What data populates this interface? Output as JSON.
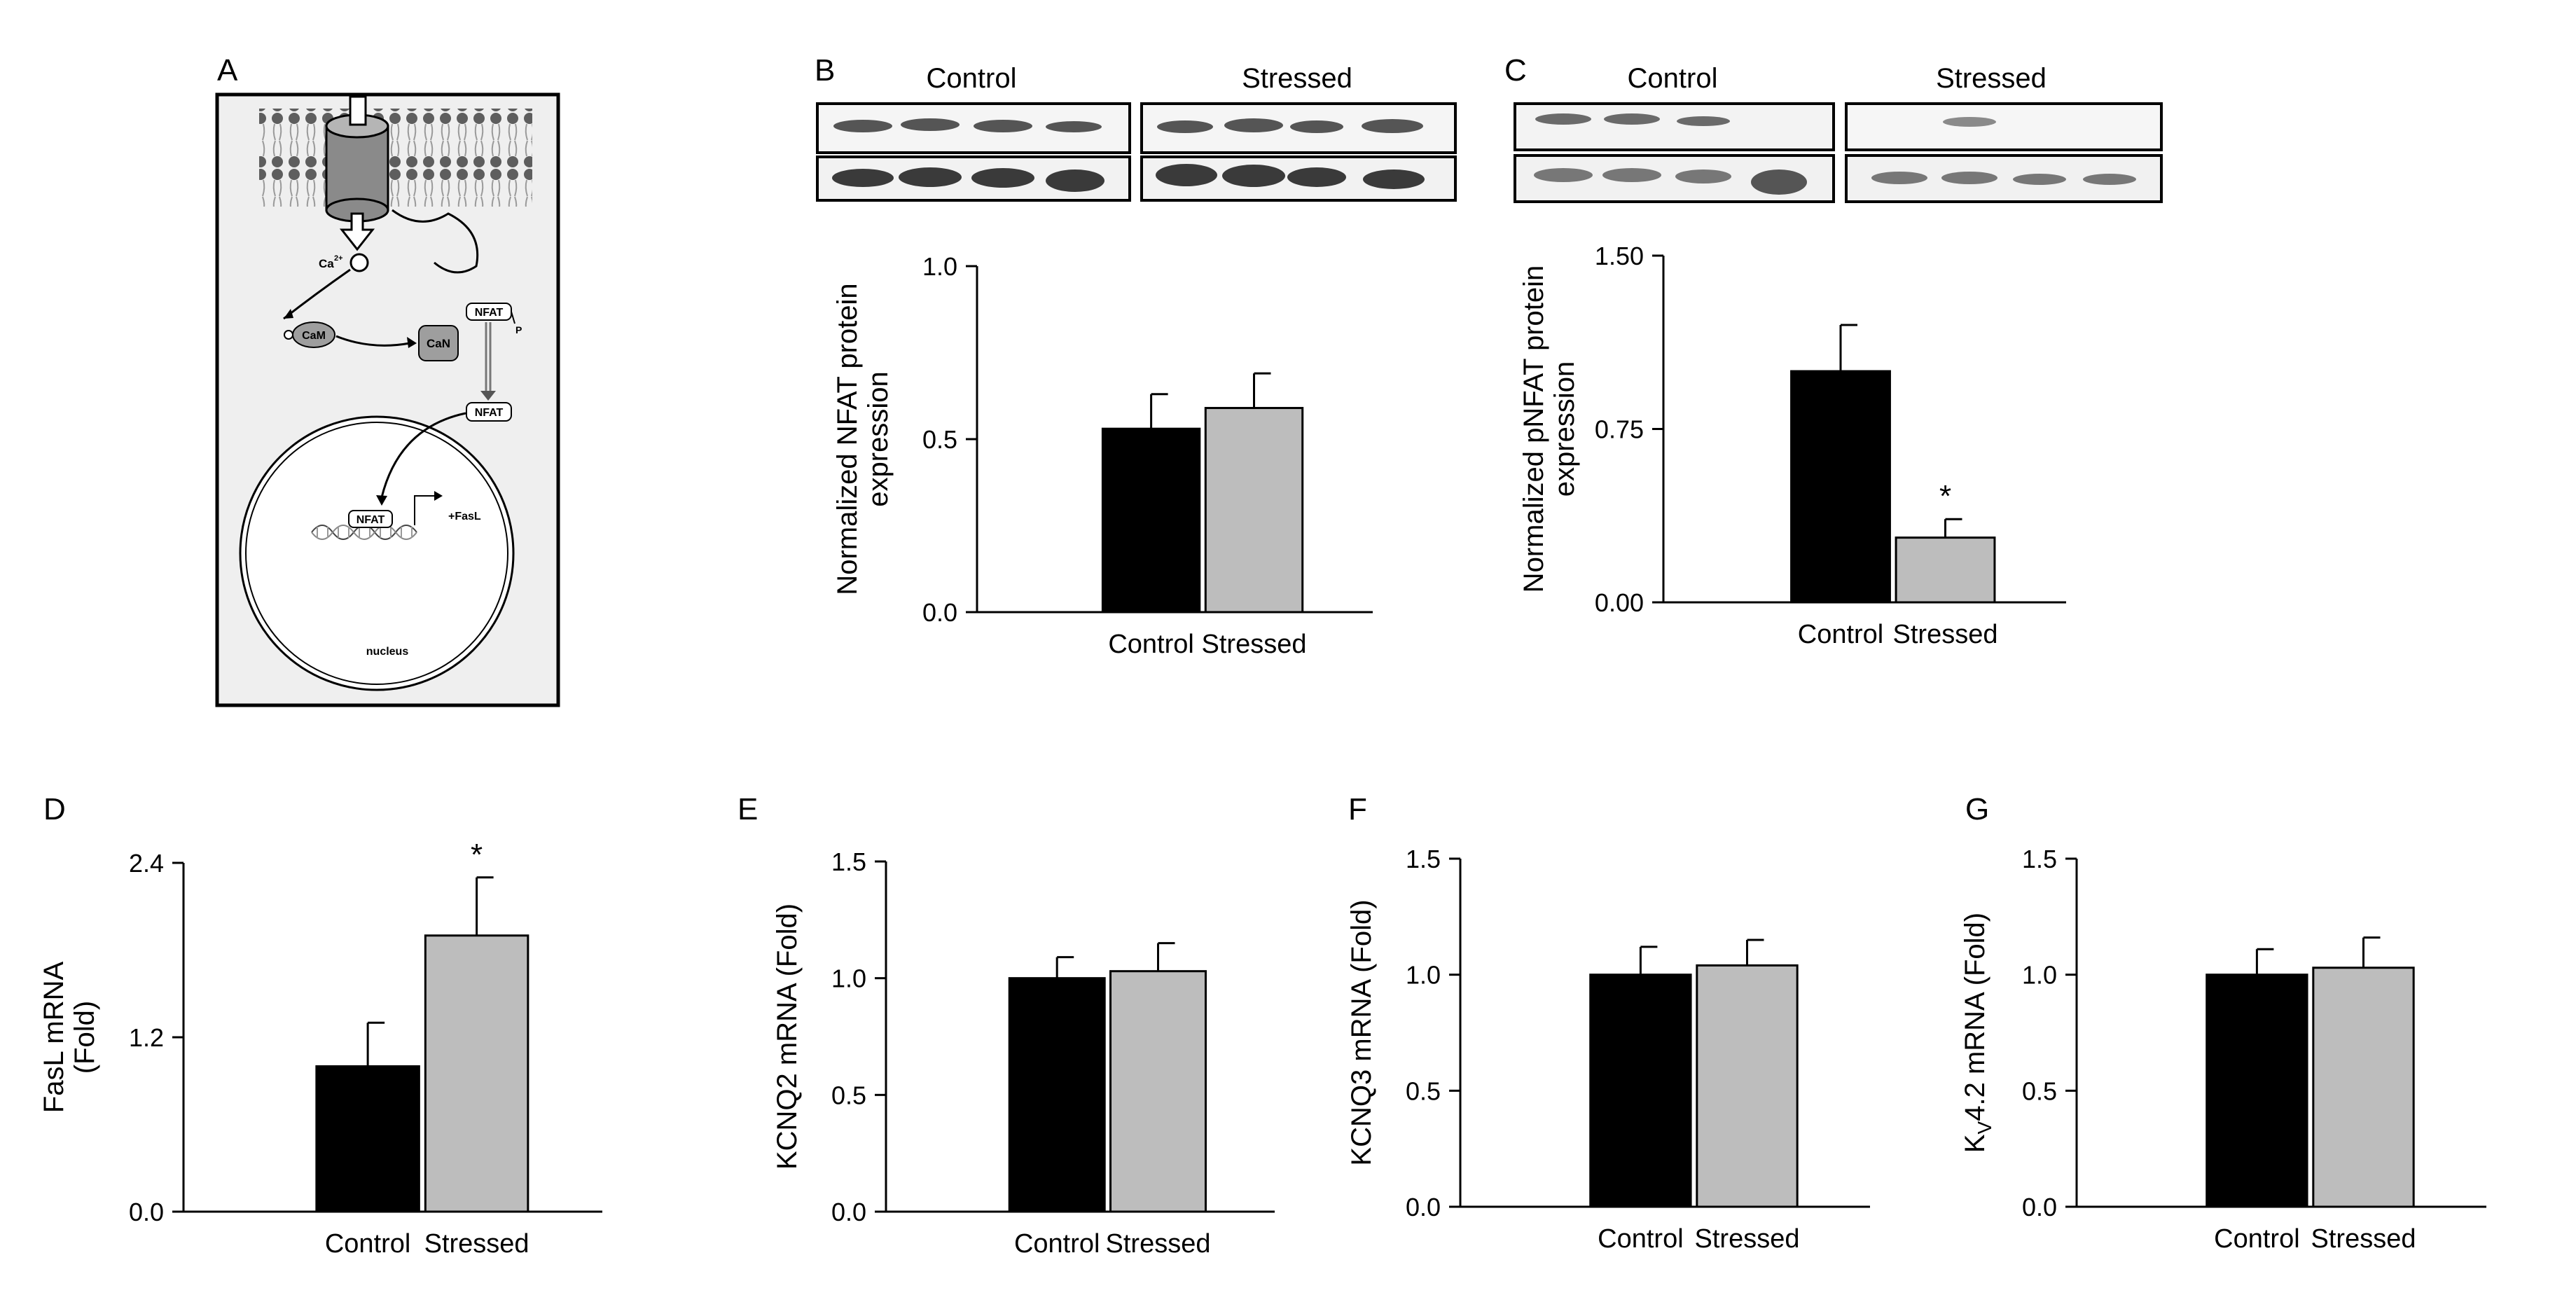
{
  "panel_letters": [
    "A",
    "B",
    "C",
    "D",
    "E",
    "F",
    "G"
  ],
  "diagram": {
    "ion_label": "Ca",
    "ion_charge": "2+",
    "cam": "CaM",
    "can": "CaN",
    "nfat": "NFAT",
    "phospho": "P",
    "gene": "+FasL",
    "nucleus": "nucleus"
  },
  "blots": {
    "B": {
      "group1": "Control",
      "group2": "Stressed"
    },
    "C": {
      "group1": "Control",
      "group2": "Stressed"
    }
  },
  "colors": {
    "control": "#000000",
    "stressed": "#bdbdbd",
    "diagram_bg": "#efefef"
  },
  "chart_data": [
    {
      "panel": "B",
      "type": "bar",
      "categories": [
        "Control",
        "Stressed"
      ],
      "values": [
        0.53,
        0.59
      ],
      "errors": [
        0.1,
        0.1
      ],
      "significant": [
        false,
        false
      ],
      "ylabel_lines": [
        "Normalized NFAT protein",
        "expression"
      ],
      "ylim": [
        0,
        1.0
      ],
      "yticks": [
        0.0,
        0.5,
        1.0
      ],
      "tick_labels": [
        "0.0",
        "0.5",
        "1.0"
      ]
    },
    {
      "panel": "C",
      "type": "bar",
      "categories": [
        "Control",
        "Stressed"
      ],
      "values": [
        1.0,
        0.28
      ],
      "errors": [
        0.2,
        0.08
      ],
      "significant": [
        false,
        true
      ],
      "sig_marker": "*",
      "ylabel_lines": [
        "Normalized pNFAT protein",
        "expression"
      ],
      "ylim": [
        0,
        1.5
      ],
      "yticks": [
        0.0,
        0.75,
        1.5
      ],
      "tick_labels": [
        "0.00",
        "0.75",
        "1.50"
      ]
    },
    {
      "panel": "D",
      "type": "bar",
      "categories": [
        "Control",
        "Stressed"
      ],
      "values": [
        1.0,
        1.9
      ],
      "errors": [
        0.3,
        0.4
      ],
      "significant": [
        false,
        true
      ],
      "sig_marker": "*",
      "ylabel_lines": [
        "FasL mRNA",
        "(Fold)"
      ],
      "ylim": [
        0,
        2.4
      ],
      "yticks": [
        0.0,
        1.2,
        2.4
      ],
      "tick_labels": [
        "0.0",
        "1.2",
        "2.4"
      ]
    },
    {
      "panel": "E",
      "type": "bar",
      "categories": [
        "Control",
        "Stressed"
      ],
      "values": [
        1.0,
        1.03
      ],
      "errors": [
        0.09,
        0.12
      ],
      "significant": [
        false,
        false
      ],
      "ylabel_lines": [
        "KCNQ2 mRNA (Fold)"
      ],
      "ylim": [
        0,
        1.5
      ],
      "yticks": [
        0.0,
        0.5,
        1.0,
        1.5
      ],
      "tick_labels": [
        "0.0",
        "0.5",
        "1.0",
        "1.5"
      ]
    },
    {
      "panel": "F",
      "type": "bar",
      "categories": [
        "Control",
        "Stressed"
      ],
      "values": [
        1.0,
        1.04
      ],
      "errors": [
        0.12,
        0.11
      ],
      "significant": [
        false,
        false
      ],
      "ylabel_lines": [
        "KCNQ3 mRNA (Fold)"
      ],
      "ylim": [
        0,
        1.5
      ],
      "yticks": [
        0.0,
        0.5,
        1.0,
        1.5
      ],
      "tick_labels": [
        "0.0",
        "0.5",
        "1.0",
        "1.5"
      ]
    },
    {
      "panel": "G",
      "type": "bar",
      "categories": [
        "Control",
        "Stressed"
      ],
      "values": [
        1.0,
        1.03
      ],
      "errors": [
        0.11,
        0.13
      ],
      "significant": [
        false,
        false
      ],
      "ylabel_lines": [
        "K",
        "V",
        "4.2 mRNA (Fold)"
      ],
      "ylim": [
        0,
        1.5
      ],
      "yticks": [
        0.0,
        0.5,
        1.0,
        1.5
      ],
      "tick_labels": [
        "0.0",
        "0.5",
        "1.0",
        "1.5"
      ]
    }
  ]
}
